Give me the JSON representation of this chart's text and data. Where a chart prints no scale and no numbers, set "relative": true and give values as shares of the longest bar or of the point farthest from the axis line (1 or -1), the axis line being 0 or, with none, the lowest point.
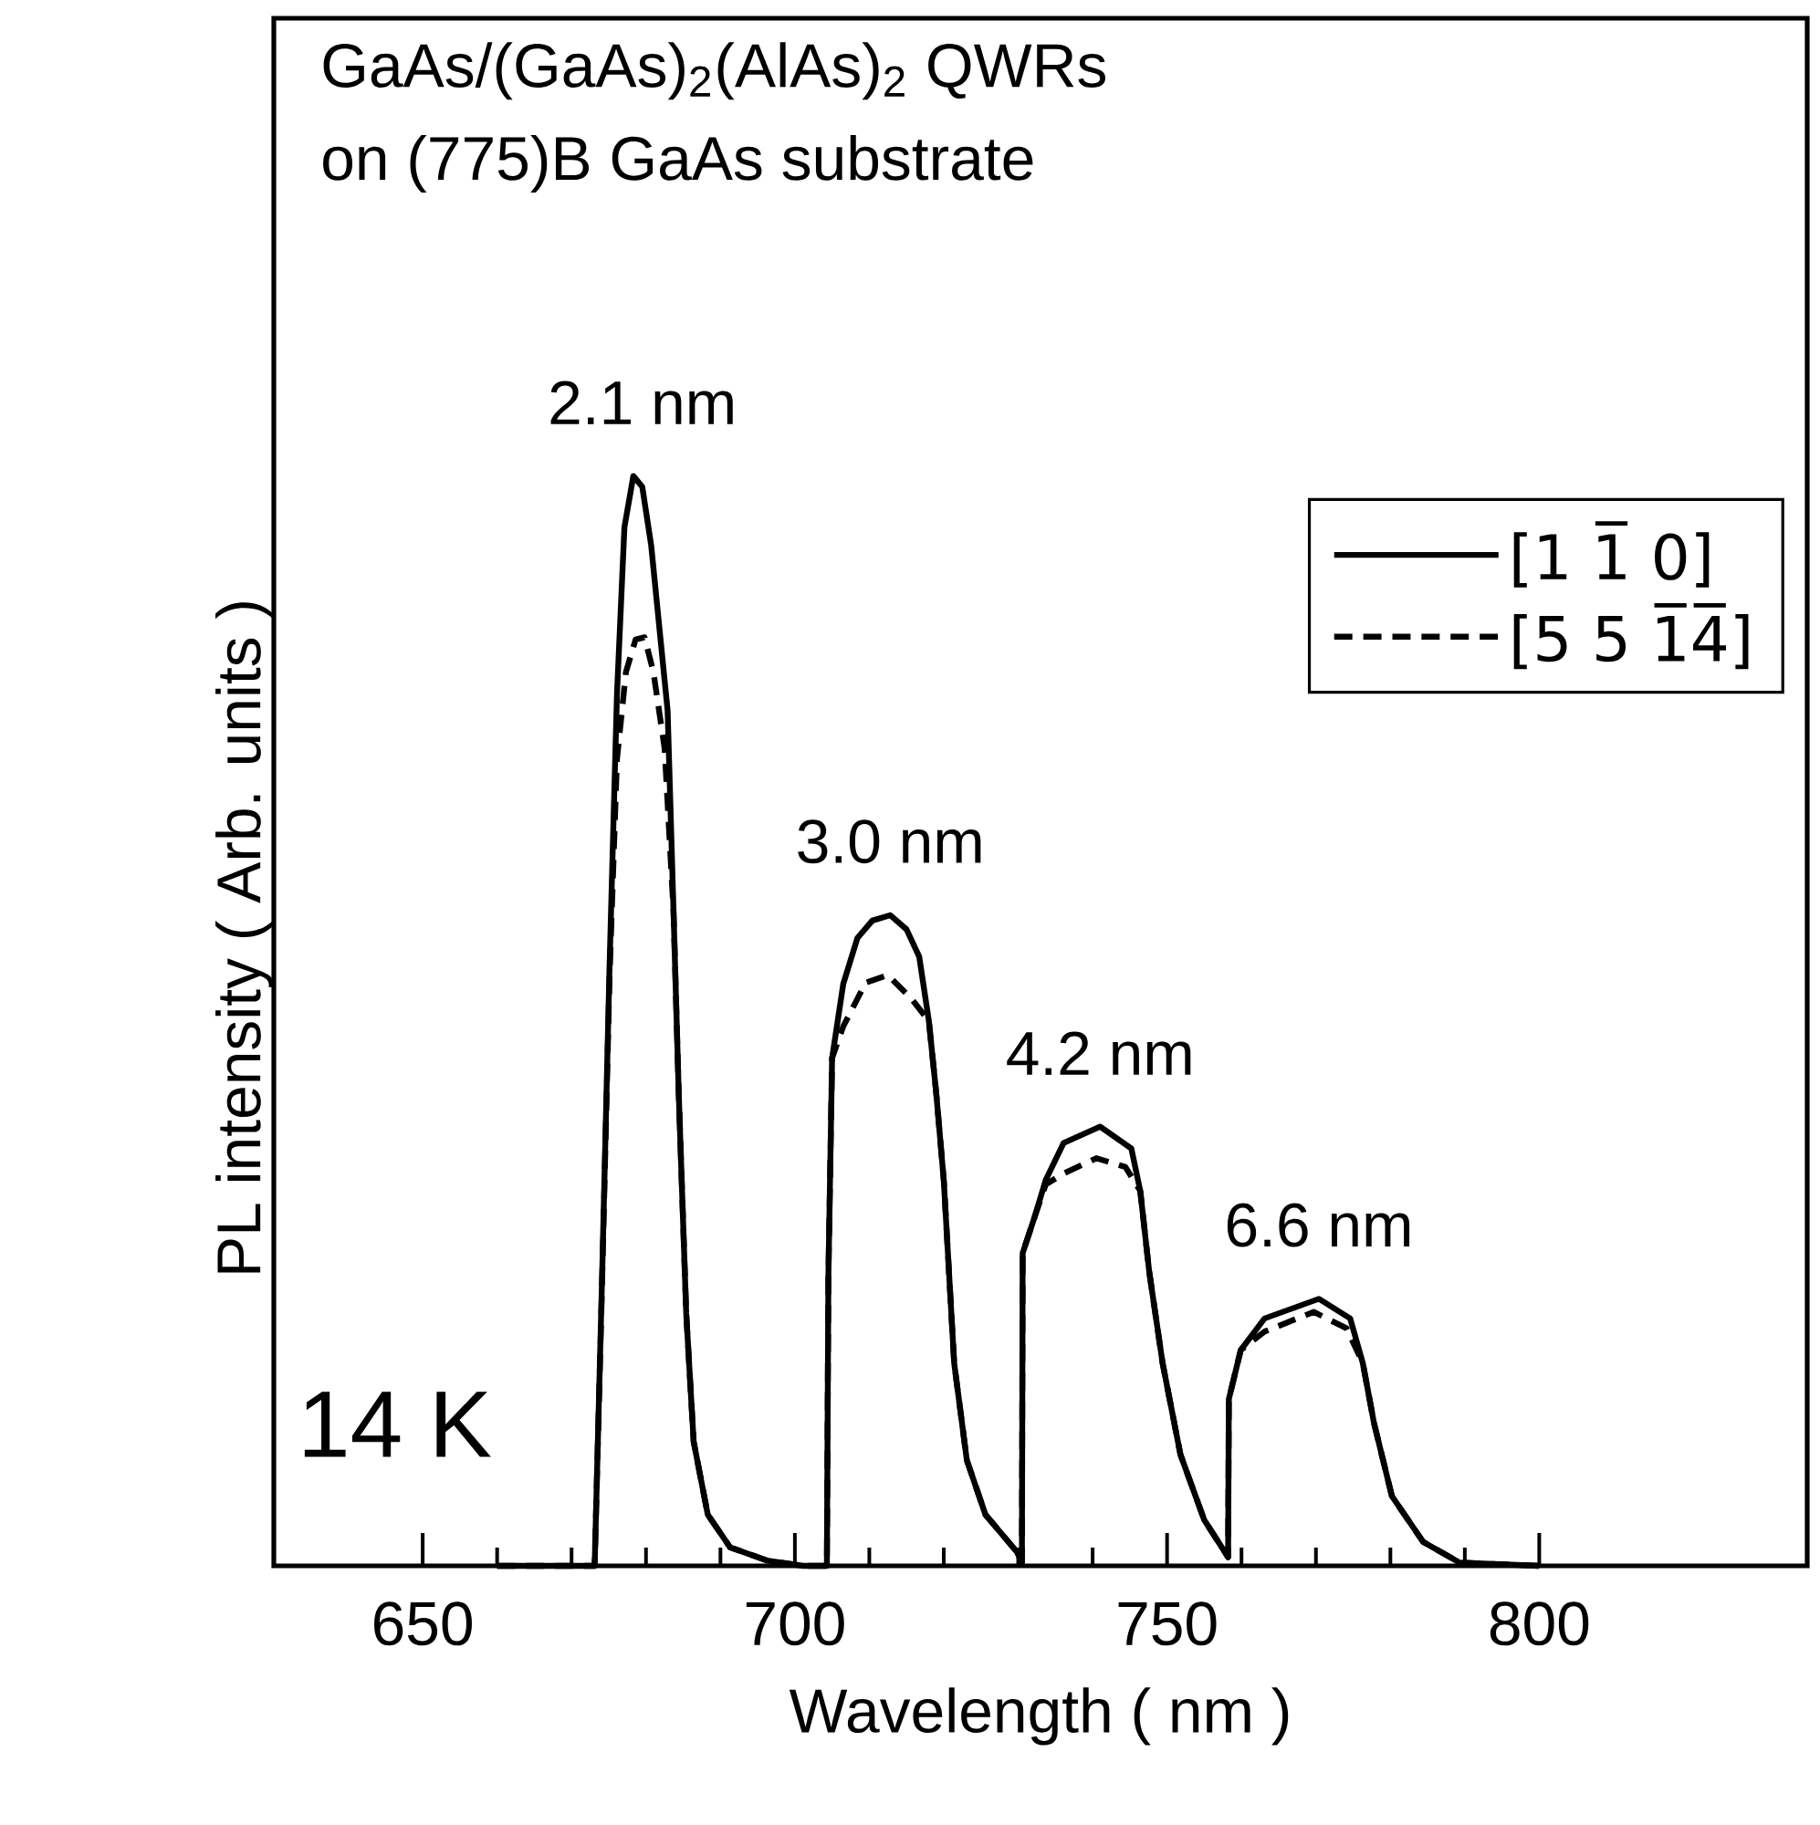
{
  "chart_data": {
    "type": "line",
    "relative": true,
    "title": "GaAs/(GaAs)$_{2}$(AlAs)$_{2}$ QWRs",
    "subtitle": "on (775)B GaAs substrate",
    "xlabel": "Wavelength ( nm )",
    "ylabel": "PL intensity ( Arb.  units )",
    "xlim": [
      630,
      836
    ],
    "xticks": [
      650,
      700,
      750,
      800
    ],
    "legend": "right",
    "series": [
      {
        "name": "[1 1̅ 0]",
        "color": "#000000",
        "line_style": "solid",
        "x": [
          660,
          673.1,
          674.1,
          675.1,
          676.1,
          677.1,
          678.3,
          679.5,
          680.7,
          682.9,
          683.7,
          684.4,
          685.4,
          686.4,
          688.3,
          691.3,
          696.2,
          701.1,
          704.3,
          704.5,
          705.0,
          706.5,
          708.4,
          710.4,
          712.8,
          715.0,
          716.7,
          718.0,
          719.0,
          720.0,
          721.4,
          723.1,
          725.6,
          729.8,
          730.5,
          730.6,
          732.2,
          733.7,
          736.1,
          741.0,
          745.2,
          746.4,
          747.6,
          749.4,
          751.8,
          755.0,
          758.2,
          758.3,
          759.9,
          763.1,
          770.4,
          774.6,
          776.3,
          777.8,
          780.2,
          784.4,
          789.3,
          800
        ],
        "values": [
          0,
          0,
          0.265,
          0.55,
          0.8,
          0.953,
          1,
          0.99,
          0.936,
          0.785,
          0.6,
          0.433,
          0.232,
          0.114,
          0.047,
          0.017,
          0.005,
          0,
          0,
          0.265,
          0.466,
          0.534,
          0.576,
          0.592,
          0.597,
          0.584,
          0.559,
          0.5,
          0.433,
          0.354,
          0.186,
          0.097,
          0.047,
          0.013,
          0.003,
          0.287,
          0.32,
          0.354,
          0.388,
          0.403,
          0.383,
          0.344,
          0.27,
          0.186,
          0.102,
          0.042,
          0.008,
          0.153,
          0.198,
          0.227,
          0.245,
          0.227,
          0.186,
          0.131,
          0.064,
          0.022,
          0.003,
          0
        ]
      },
      {
        "name": "[5 5 1̅4̅]",
        "color": "#000000",
        "line_style": "dashed",
        "x": [
          660,
          673.1,
          674.1,
          675.1,
          676.1,
          677.3,
          678.6,
          679.8,
          681.0,
          682.5,
          683.7,
          684.4,
          685.4,
          686.4,
          688.3,
          691.3,
          696.2,
          701.1,
          704.3,
          704.5,
          705.0,
          706.5,
          709.5,
          712.5,
          715.7,
          718.0,
          719.0,
          720.0,
          721.4,
          723.1,
          725.6,
          729.8,
          730.5,
          730.6,
          732.2,
          733.7,
          736.1,
          740.5,
          744.4,
          746.4,
          747.6,
          749.4,
          751.8,
          755.0,
          758.2,
          758.3,
          759.9,
          763.1,
          769.7,
          774.1,
          776.3,
          777.8,
          780.2,
          784.4,
          789.3,
          800
        ],
        "values": [
          0,
          0,
          0.26,
          0.54,
          0.74,
          0.82,
          0.85,
          0.852,
          0.82,
          0.75,
          0.6,
          0.433,
          0.232,
          0.114,
          0.047,
          0.017,
          0.005,
          0,
          0,
          0.265,
          0.466,
          0.495,
          0.535,
          0.542,
          0.52,
          0.5,
          0.433,
          0.354,
          0.186,
          0.097,
          0.047,
          0.013,
          0.003,
          0.287,
          0.32,
          0.35,
          0.36,
          0.374,
          0.366,
          0.344,
          0.27,
          0.186,
          0.102,
          0.042,
          0.008,
          0.153,
          0.198,
          0.215,
          0.233,
          0.218,
          0.186,
          0.131,
          0.064,
          0.022,
          0.003,
          0
        ]
      }
    ],
    "annotations": [
      {
        "text": "2.1 nm",
        "x": 679.5,
        "y": 1
      },
      {
        "text": "3.0 nm",
        "x": 712.8,
        "y": 0.597
      },
      {
        "text": "4.2 nm",
        "x": 741.0,
        "y": 0.403
      },
      {
        "text": "6.6 nm",
        "x": 770.4,
        "y": 0.245
      },
      "14 K"
    ]
  }
}
